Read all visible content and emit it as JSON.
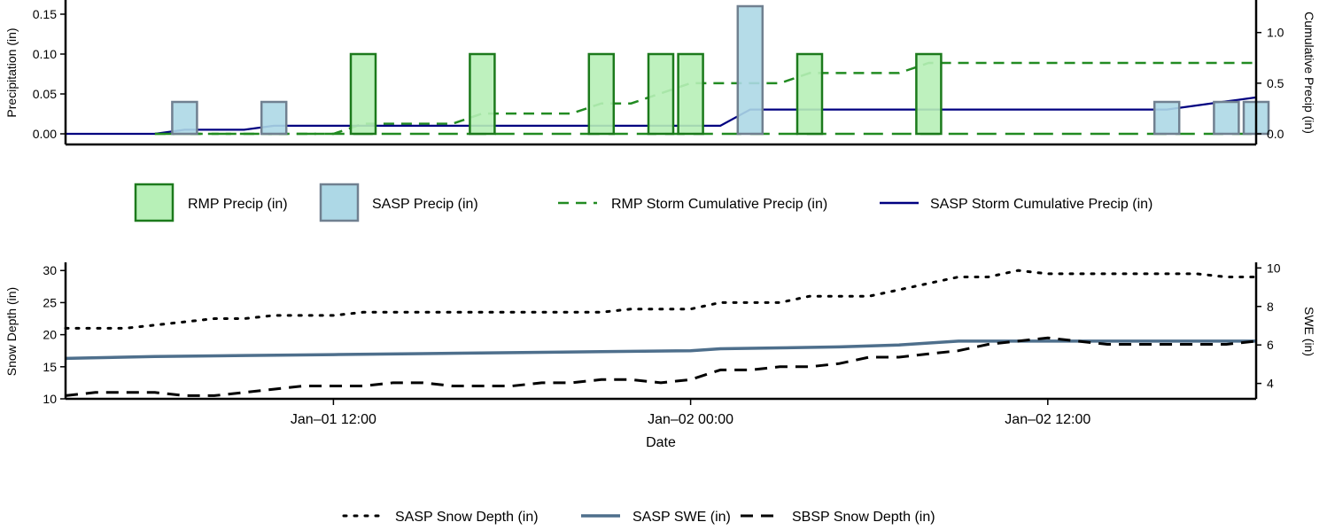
{
  "chart_data": [
    {
      "type": "bar",
      "ylabel": "Precipitation (in)",
      "ylabel_right": "Cumulative Precip (in)",
      "ylim": [
        0,
        0.16
      ],
      "ylim_right": [
        0,
        1.26
      ],
      "yticks": [
        "0.00",
        "0.05",
        "0.10",
        "0.15"
      ],
      "yticks_right": [
        "0.0",
        "0.5",
        "1.0"
      ],
      "x_start": "Jan-01 03:00",
      "x_end": "Jan-02 19:00",
      "bars": [
        {
          "series": "RMP Precip (in)",
          "x": [
            "Jan-01 13:00",
            "Jan-01 17:00",
            "Jan-01 21:00",
            "Jan-01 23:00",
            "Jan-02 00:00",
            "Jan-02 04:00",
            "Jan-02 08:00"
          ],
          "values": [
            0.1,
            0.1,
            0.1,
            0.1,
            0.1,
            0.1,
            0.1
          ]
        },
        {
          "series": "SASP Precip (in)",
          "x": [
            "Jan-01 07:00",
            "Jan-01 10:00",
            "Jan-02 02:00",
            "Jan-02 16:00",
            "Jan-02 18:00",
            "Jan-02 19:00"
          ],
          "values": [
            0.04,
            0.04,
            0.16,
            0.04,
            0.04,
            0.04
          ]
        }
      ],
      "lines": [
        {
          "series": "RMP Storm Cumulative Precip (in)",
          "axis": "right",
          "style": "dashed",
          "x": [
            "Jan-01 06:00",
            "Jan-01 07:00",
            "Jan-01 08:00",
            "Jan-01 09:00",
            "Jan-01 10:00",
            "Jan-01 11:00",
            "Jan-01 12:00",
            "Jan-01 13:00",
            "Jan-01 14:00",
            "Jan-01 15:00",
            "Jan-01 16:00",
            "Jan-01 17:00",
            "Jan-01 18:00",
            "Jan-01 19:00",
            "Jan-01 20:00",
            "Jan-01 21:00",
            "Jan-01 22:00",
            "Jan-01 23:00",
            "Jan-02 00:00",
            "Jan-02 01:00",
            "Jan-02 02:00",
            "Jan-02 03:00",
            "Jan-02 04:00",
            "Jan-02 05:00",
            "Jan-02 06:00",
            "Jan-02 07:00",
            "Jan-02 08:00",
            "Jan-02 19:00"
          ],
          "values": [
            0.0,
            0.0,
            0.0,
            0.0,
            0.0,
            0.0,
            0.0,
            0.1,
            0.1,
            0.1,
            0.1,
            0.2,
            0.2,
            0.2,
            0.2,
            0.3,
            0.3,
            0.4,
            0.5,
            0.5,
            0.5,
            0.5,
            0.6,
            0.6,
            0.6,
            0.6,
            0.7,
            0.7
          ]
        },
        {
          "series": "SASP Storm Cumulative Precip (in)",
          "axis": "right",
          "style": "solid",
          "x": [
            "Jan-01 03:00",
            "Jan-01 06:00",
            "Jan-01 07:00",
            "Jan-01 08:00",
            "Jan-01 09:00",
            "Jan-01 10:00",
            "Jan-01 11:00",
            "Jan-02 01:00",
            "Jan-02 02:00",
            "Jan-02 16:00",
            "Jan-02 17:00",
            "Jan-02 18:00",
            "Jan-02 19:00"
          ],
          "values": [
            0.0,
            0.0,
            0.04,
            0.04,
            0.04,
            0.08,
            0.08,
            0.08,
            0.24,
            0.24,
            0.28,
            0.32,
            0.36
          ]
        },
        {
          "series": "",
          "axis": "right",
          "style": "long-dashed",
          "x": [
            "Jan-01 06:00",
            "Jan-02 19:00"
          ],
          "values": [
            0.0,
            0.0
          ]
        }
      ],
      "legend": {
        "placement": "below",
        "entries": [
          "RMP Precip (in)",
          "SASP Precip (in)",
          "RMP Storm Cumulative Precip (in)",
          "SASP Storm Cumulative Precip (in)"
        ]
      }
    },
    {
      "type": "line",
      "xlabel": "Date",
      "ylabel": "Snow Depth (in)",
      "ylabel_right": "SWE (in)",
      "ylim": [
        10,
        31
      ],
      "ylim_right": [
        3.2,
        10.2
      ],
      "yticks": [
        "10",
        "15",
        "20",
        "25",
        "30"
      ],
      "yticks_right": [
        "4",
        "6",
        "8",
        "10"
      ],
      "xticks": [
        "Jan–01 12:00",
        "Jan–02 00:00",
        "Jan–02 12:00"
      ],
      "series": [
        {
          "name": "SASP Snow Depth (in)",
          "axis": "left",
          "style": "dotted",
          "x": [
            "Jan-01 03:00",
            "Jan-01 05:00",
            "Jan-01 06:00",
            "Jan-01 08:00",
            "Jan-01 09:00",
            "Jan-01 10:00",
            "Jan-01 11:00",
            "Jan-01 12:00",
            "Jan-01 13:00",
            "Jan-01 14:00",
            "Jan-01 15:00",
            "Jan-01 16:00",
            "Jan-01 17:00",
            "Jan-01 18:00",
            "Jan-01 19:00",
            "Jan-01 20:00",
            "Jan-01 21:00",
            "Jan-01 22:00",
            "Jan-01 23:00",
            "Jan-02 00:00",
            "Jan-02 01:00",
            "Jan-02 02:00",
            "Jan-02 03:00",
            "Jan-02 04:00",
            "Jan-02 05:00",
            "Jan-02 06:00",
            "Jan-02 07:00",
            "Jan-02 08:00",
            "Jan-02 09:00",
            "Jan-02 10:00",
            "Jan-02 11:00",
            "Jan-02 12:00",
            "Jan-02 13:00",
            "Jan-02 14:00",
            "Jan-02 15:00",
            "Jan-02 16:00",
            "Jan-02 17:00",
            "Jan-02 18:00",
            "Jan-02 19:00"
          ],
          "values": [
            21.0,
            21.0,
            21.5,
            22.5,
            22.5,
            23.0,
            23.0,
            23.0,
            23.5,
            23.5,
            23.5,
            23.5,
            23.5,
            23.5,
            23.5,
            23.5,
            23.5,
            24.0,
            24.0,
            24.0,
            25.0,
            25.0,
            25.0,
            26.0,
            26.0,
            26.0,
            27.0,
            28.0,
            29.0,
            29.0,
            30.0,
            29.5,
            29.5,
            29.5,
            29.5,
            29.5,
            29.5,
            29.0,
            29.0
          ]
        },
        {
          "name": "SASP SWE (in)",
          "axis": "right",
          "style": "solid",
          "x": [
            "Jan-01 03:00",
            "Jan-01 06:00",
            "Jan-01 09:00",
            "Jan-01 12:00",
            "Jan-01 15:00",
            "Jan-01 18:00",
            "Jan-01 21:00",
            "Jan-02 00:00",
            "Jan-02 01:00",
            "Jan-02 03:00",
            "Jan-02 05:00",
            "Jan-02 07:00",
            "Jan-02 09:00",
            "Jan-02 11:00",
            "Jan-02 13:00",
            "Jan-02 15:00",
            "Jan-02 17:00",
            "Jan-02 19:00"
          ],
          "values": [
            5.3,
            5.4,
            5.45,
            5.5,
            5.55,
            5.6,
            5.65,
            5.7,
            5.8,
            5.85,
            5.9,
            6.0,
            6.2,
            6.2,
            6.2,
            6.2,
            6.2,
            6.2
          ]
        },
        {
          "name": "SBSP Snow Depth (in)",
          "axis": "left",
          "style": "dashed",
          "x": [
            "Jan-01 03:00",
            "Jan-01 04:00",
            "Jan-01 05:00",
            "Jan-01 06:00",
            "Jan-01 07:00",
            "Jan-01 08:00",
            "Jan-01 09:00",
            "Jan-01 10:00",
            "Jan-01 11:00",
            "Jan-01 12:00",
            "Jan-01 13:00",
            "Jan-01 14:00",
            "Jan-01 15:00",
            "Jan-01 16:00",
            "Jan-01 17:00",
            "Jan-01 18:00",
            "Jan-01 19:00",
            "Jan-01 20:00",
            "Jan-01 21:00",
            "Jan-01 22:00",
            "Jan-01 23:00",
            "Jan-02 00:00",
            "Jan-02 01:00",
            "Jan-02 02:00",
            "Jan-02 03:00",
            "Jan-02 04:00",
            "Jan-02 05:00",
            "Jan-02 06:00",
            "Jan-02 07:00",
            "Jan-02 08:00",
            "Jan-02 09:00",
            "Jan-02 10:00",
            "Jan-02 11:00",
            "Jan-02 12:00",
            "Jan-02 13:00",
            "Jan-02 14:00",
            "Jan-02 15:00",
            "Jan-02 16:00",
            "Jan-02 17:00",
            "Jan-02 18:00",
            "Jan-02 19:00"
          ],
          "values": [
            10.5,
            11.0,
            11.0,
            11.0,
            10.5,
            10.5,
            11.0,
            11.5,
            12.0,
            12.0,
            12.0,
            12.5,
            12.5,
            12.0,
            12.0,
            12.0,
            12.5,
            12.5,
            13.0,
            13.0,
            12.5,
            13.0,
            14.5,
            14.5,
            15.0,
            15.0,
            15.5,
            16.5,
            16.5,
            17.0,
            17.5,
            18.5,
            19.0,
            19.5,
            19.0,
            18.5,
            18.5,
            18.5,
            18.5,
            18.5,
            19.0
          ]
        }
      ],
      "legend": {
        "placement": "below",
        "entries": [
          "SASP Snow Depth (in)",
          "SASP SWE (in)",
          "SBSP Snow Depth (in)"
        ]
      }
    }
  ],
  "colors": {
    "rmp_bar_fill": "#b7f0b7",
    "rmp_bar_edge": "#1c7a1c",
    "sasp_bar_fill": "#add8e6",
    "sasp_bar_edge": "#708090",
    "rmp_cumulative": "#228b22",
    "sasp_cumulative": "#000080",
    "swe": "#4e6f8c",
    "depth": "#000000"
  }
}
